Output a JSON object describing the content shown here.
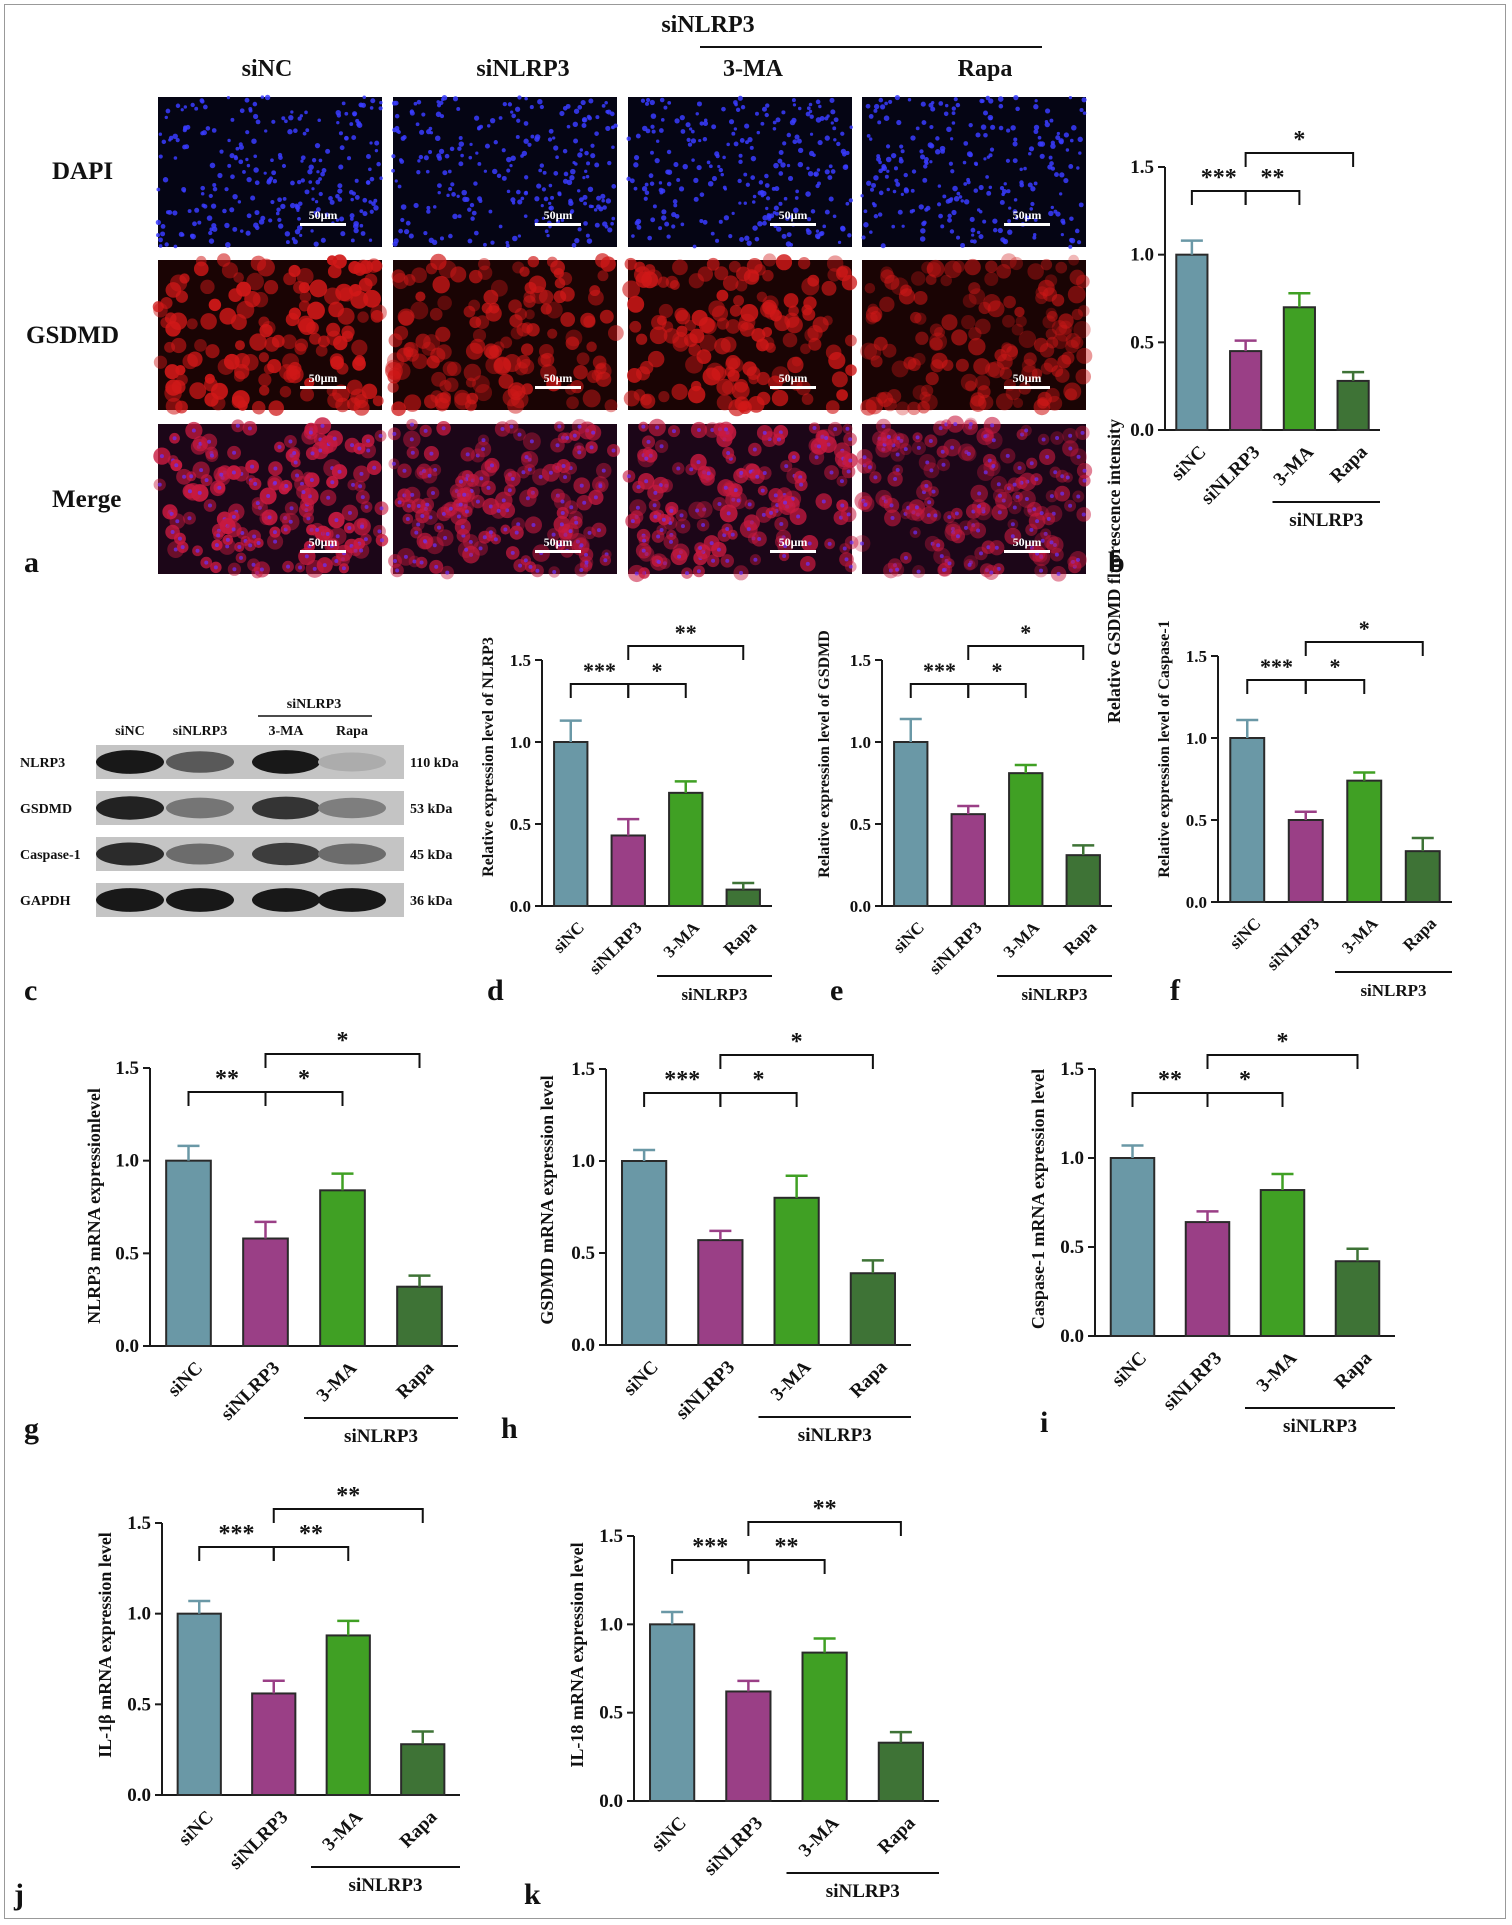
{
  "colors": {
    "siNC": "#6a98a6",
    "siNLRP3": "#9a3f86",
    "MA3": "#40a024",
    "Rapa": "#3e7336",
    "axis": "#1a1a1a"
  },
  "panel_letters": [
    "a",
    "b",
    "c",
    "d",
    "e",
    "f",
    "g",
    "h",
    "i",
    "j",
    "k"
  ],
  "micro": {
    "columns": [
      "siNC",
      "siNLRP3",
      "3-MA",
      "Rapa"
    ],
    "group_label": "siNLRP3",
    "rows": [
      "DAPI",
      "GSDMD",
      "Merge"
    ],
    "scalebar": "50μm"
  },
  "blot": {
    "lanes": [
      "siNC",
      "siNLRP3",
      "3-MA",
      "Rapa"
    ],
    "group_label": "siNLRP3",
    "proteins": [
      {
        "name": "NLRP3",
        "kda": "110 kDa"
      },
      {
        "name": "GSDMD",
        "kda": "53 kDa"
      },
      {
        "name": "Caspase-1",
        "kda": "45 kDa"
      },
      {
        "name": "GAPDH",
        "kda": "36 kDa"
      }
    ],
    "intensities": [
      [
        0.95,
        0.6,
        0.95,
        0.15
      ],
      [
        0.9,
        0.45,
        0.8,
        0.4
      ],
      [
        0.85,
        0.5,
        0.75,
        0.5
      ],
      [
        0.95,
        0.95,
        0.95,
        0.95
      ]
    ]
  },
  "chart_data": [
    {
      "id": "b",
      "type": "bar",
      "categories": [
        "siNC",
        "siNLRP3",
        "3-MA",
        "Rapa"
      ],
      "group_label": "siNLRP3",
      "ylabel": "Relative GSDMD fluorescence intensity",
      "ylim": [
        0,
        1.5
      ],
      "yticks": [
        "0.0",
        "0.5",
        "1.0",
        "1.5"
      ],
      "values": [
        1.0,
        0.45,
        0.7,
        0.28
      ],
      "errors": [
        0.08,
        0.06,
        0.08,
        0.05
      ],
      "sig": [
        {
          "from": 0,
          "to": 1,
          "label": "***",
          "level": 1
        },
        {
          "from": 1,
          "to": 2,
          "label": "**",
          "level": 1
        },
        {
          "from": 1,
          "to": 3,
          "label": "*",
          "level": 2
        }
      ]
    },
    {
      "id": "d",
      "type": "bar",
      "categories": [
        "siNC",
        "siNLRP3",
        "3-MA",
        "Rapa"
      ],
      "group_label": "siNLRP3",
      "ylabel": "Relative expression level of NLRP3",
      "ylim": [
        0,
        1.5
      ],
      "yticks": [
        "0.0",
        "0.5",
        "1.0",
        "1.5"
      ],
      "values": [
        1.0,
        0.43,
        0.69,
        0.1
      ],
      "errors": [
        0.13,
        0.1,
        0.07,
        0.04
      ],
      "sig": [
        {
          "from": 0,
          "to": 1,
          "label": "***",
          "level": 1
        },
        {
          "from": 1,
          "to": 2,
          "label": "*",
          "level": 1
        },
        {
          "from": 1,
          "to": 3,
          "label": "**",
          "level": 2
        }
      ]
    },
    {
      "id": "e",
      "type": "bar",
      "categories": [
        "siNC",
        "siNLRP3",
        "3-MA",
        "Rapa"
      ],
      "group_label": "siNLRP3",
      "ylabel": "Relative expression level of GSDMD",
      "ylim": [
        0,
        1.5
      ],
      "yticks": [
        "0.0",
        "0.5",
        "1.0",
        "1.5"
      ],
      "values": [
        1.0,
        0.56,
        0.81,
        0.31
      ],
      "errors": [
        0.14,
        0.05,
        0.05,
        0.06
      ],
      "sig": [
        {
          "from": 0,
          "to": 1,
          "label": "***",
          "level": 1
        },
        {
          "from": 1,
          "to": 2,
          "label": "*",
          "level": 1
        },
        {
          "from": 1,
          "to": 3,
          "label": "*",
          "level": 2
        }
      ]
    },
    {
      "id": "f",
      "type": "bar",
      "categories": [
        "siNC",
        "siNLRP3",
        "3-MA",
        "Rapa"
      ],
      "group_label": "siNLRP3",
      "ylabel": "Relative expression level of Caspase-1",
      "ylim": [
        0,
        1.5
      ],
      "yticks": [
        "0.0",
        "0.5",
        "1.0",
        "1.5"
      ],
      "values": [
        1.0,
        0.5,
        0.74,
        0.31
      ],
      "errors": [
        0.11,
        0.05,
        0.05,
        0.08
      ],
      "sig": [
        {
          "from": 0,
          "to": 1,
          "label": "***",
          "level": 1
        },
        {
          "from": 1,
          "to": 2,
          "label": "*",
          "level": 1
        },
        {
          "from": 1,
          "to": 3,
          "label": "*",
          "level": 2
        }
      ]
    },
    {
      "id": "g",
      "type": "bar",
      "categories": [
        "siNC",
        "siNLRP3",
        "3-MA",
        "Rapa"
      ],
      "group_label": "siNLRP3",
      "ylabel": "NLRP3 mRNA expressionlevel",
      "ylim": [
        0,
        1.5
      ],
      "yticks": [
        "0.0",
        "0.5",
        "1.0",
        "1.5"
      ],
      "values": [
        1.0,
        0.58,
        0.84,
        0.32
      ],
      "errors": [
        0.08,
        0.09,
        0.09,
        0.06
      ],
      "sig": [
        {
          "from": 0,
          "to": 1,
          "label": "**",
          "level": 1
        },
        {
          "from": 1,
          "to": 2,
          "label": "*",
          "level": 1
        },
        {
          "from": 1,
          "to": 3,
          "label": "*",
          "level": 2
        }
      ]
    },
    {
      "id": "h",
      "type": "bar",
      "categories": [
        "siNC",
        "siNLRP3",
        "3-MA",
        "Rapa"
      ],
      "group_label": "siNLRP3",
      "ylabel": "GSDMD mRNA expression level",
      "ylim": [
        0,
        1.5
      ],
      "yticks": [
        "0.0",
        "0.5",
        "1.0",
        "1.5"
      ],
      "values": [
        1.0,
        0.57,
        0.8,
        0.39
      ],
      "errors": [
        0.06,
        0.05,
        0.12,
        0.07
      ],
      "sig": [
        {
          "from": 0,
          "to": 1,
          "label": "***",
          "level": 1
        },
        {
          "from": 1,
          "to": 2,
          "label": "*",
          "level": 1
        },
        {
          "from": 1,
          "to": 3,
          "label": "*",
          "level": 2
        }
      ]
    },
    {
      "id": "i",
      "type": "bar",
      "categories": [
        "siNC",
        "siNLRP3",
        "3-MA",
        "Rapa"
      ],
      "group_label": "siNLRP3",
      "ylabel": "Caspase-1 mRNA expression level",
      "ylim": [
        0,
        1.5
      ],
      "yticks": [
        "0.0",
        "0.5",
        "1.0",
        "1.5"
      ],
      "values": [
        1.0,
        0.64,
        0.82,
        0.42
      ],
      "errors": [
        0.07,
        0.06,
        0.09,
        0.07
      ],
      "sig": [
        {
          "from": 0,
          "to": 1,
          "label": "**",
          "level": 1
        },
        {
          "from": 1,
          "to": 2,
          "label": "*",
          "level": 1
        },
        {
          "from": 1,
          "to": 3,
          "label": "*",
          "level": 2
        }
      ]
    },
    {
      "id": "j",
      "type": "bar",
      "categories": [
        "siNC",
        "siNLRP3",
        "3-MA",
        "Rapa"
      ],
      "group_label": "siNLRP3",
      "ylabel": "IL-1β mRNA expression level",
      "ylim": [
        0,
        1.5
      ],
      "yticks": [
        "0.0",
        "0.5",
        "1.0",
        "1.5"
      ],
      "values": [
        1.0,
        0.56,
        0.88,
        0.28
      ],
      "errors": [
        0.07,
        0.07,
        0.08,
        0.07
      ],
      "sig": [
        {
          "from": 0,
          "to": 1,
          "label": "***",
          "level": 1
        },
        {
          "from": 1,
          "to": 2,
          "label": "**",
          "level": 1
        },
        {
          "from": 1,
          "to": 3,
          "label": "**",
          "level": 2
        }
      ]
    },
    {
      "id": "k",
      "type": "bar",
      "categories": [
        "siNC",
        "siNLRP3",
        "3-MA",
        "Rapa"
      ],
      "group_label": "siNLRP3",
      "ylabel": "IL-18 mRNA expression level",
      "ylim": [
        0,
        1.5
      ],
      "yticks": [
        "0.0",
        "0.5",
        "1.0",
        "1.5"
      ],
      "values": [
        1.0,
        0.62,
        0.84,
        0.33
      ],
      "errors": [
        0.07,
        0.06,
        0.08,
        0.06
      ],
      "sig": [
        {
          "from": 0,
          "to": 1,
          "label": "***",
          "level": 1
        },
        {
          "from": 1,
          "to": 2,
          "label": "**",
          "level": 1
        },
        {
          "from": 1,
          "to": 3,
          "label": "**",
          "level": 2
        }
      ]
    }
  ]
}
